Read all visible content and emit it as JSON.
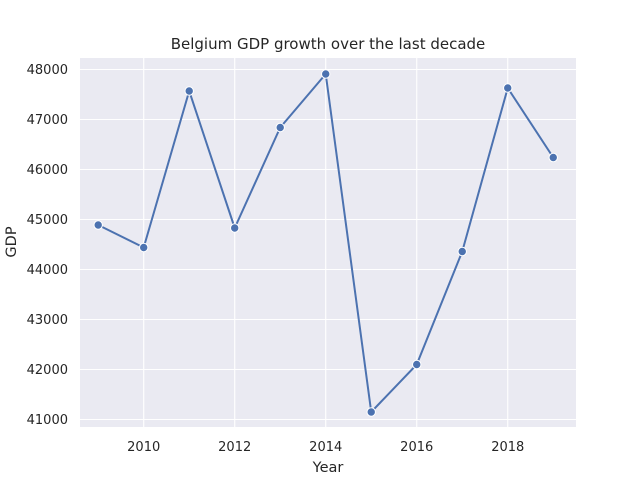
{
  "chart_data": {
    "type": "line",
    "title": "Belgium GDP growth over the last decade",
    "xlabel": "Year",
    "ylabel": "GDP",
    "x": [
      2009,
      2010,
      2011,
      2012,
      2013,
      2014,
      2015,
      2016,
      2017,
      2018,
      2019
    ],
    "series": [
      {
        "values": [
          44890,
          44440,
          47570,
          44830,
          46840,
          47910,
          41150,
          42100,
          44360,
          47630,
          46240
        ]
      }
    ],
    "xlim": [
      2008.6,
      2019.5
    ],
    "ylim": [
      40850,
      48230
    ],
    "xticks": [
      2010,
      2012,
      2014,
      2016,
      2018
    ],
    "yticks": [
      41000,
      42000,
      43000,
      44000,
      45000,
      46000,
      47000,
      48000
    ],
    "grid": true,
    "colors": {
      "line": "#4c72b0",
      "background": "#eaeaf2",
      "grid": "#ffffff",
      "marker_edge": "#ffffff"
    }
  }
}
